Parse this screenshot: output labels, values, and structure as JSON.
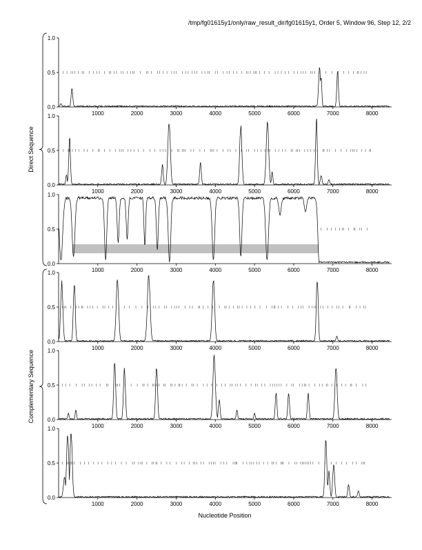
{
  "header": "/tmp/fg01615y1/only/raw_result_dir/fg01615y1, Order 5, Window 96, Step 12, 2/2",
  "xlabel": "Nucleotide Position",
  "group_labels": [
    "Direct Sequence",
    "Complementary Sequence"
  ],
  "colors": {
    "axis": "#000000",
    "trace": "#000000",
    "tick_marks": "#555555",
    "band": "#c0c0c0"
  },
  "chart_data": [
    {
      "type": "line",
      "panel": 1,
      "group": "Direct Sequence",
      "xlim": [
        0,
        8500
      ],
      "ylim": [
        0,
        1
      ],
      "xticks": [
        1000,
        2000,
        3000,
        4000,
        5000,
        6000,
        7000,
        8000
      ],
      "yticks": [
        "0.0",
        "0.5",
        "1.0"
      ],
      "baseline": 0.02,
      "peaks": [
        [
          340,
          0.28,
          30
        ],
        [
          6660,
          0.62,
          35
        ],
        [
          6700,
          0.45,
          25
        ],
        [
          7120,
          0.55,
          30
        ],
        [
          60,
          0.05,
          30
        ]
      ],
      "marker_level": 0.5,
      "marker_range": [
        120,
        7900
      ]
    },
    {
      "type": "line",
      "panel": 2,
      "group": "Direct Sequence",
      "xlim": [
        0,
        8500
      ],
      "ylim": [
        0,
        1
      ],
      "xticks": [
        1000,
        2000,
        3000,
        4000,
        5000,
        6000,
        7000,
        8000
      ],
      "yticks": [
        "0.0",
        "0.5",
        "1.0"
      ],
      "baseline": 0.02,
      "peaks": [
        [
          200,
          0.15,
          25
        ],
        [
          280,
          0.72,
          30
        ],
        [
          2650,
          0.3,
          30
        ],
        [
          2820,
          0.95,
          45
        ],
        [
          3620,
          0.35,
          30
        ],
        [
          4650,
          0.9,
          40
        ],
        [
          5330,
          0.93,
          45
        ],
        [
          5450,
          0.2,
          25
        ],
        [
          6580,
          1.0,
          30
        ],
        [
          6700,
          0.15,
          30
        ],
        [
          6900,
          0.08,
          30
        ]
      ],
      "marker_level": 0.5,
      "marker_range": [
        120,
        8000
      ]
    },
    {
      "type": "line",
      "panel": 3,
      "group": "Direct Sequence",
      "xlim": [
        0,
        8500
      ],
      "ylim": [
        0,
        1
      ],
      "xticks": [
        1000,
        2000,
        3000,
        4000,
        5000,
        6000,
        7000,
        8000
      ],
      "yticks": [
        "0.0",
        "0.5",
        "1.0"
      ],
      "baseline": 0.97,
      "dips": [
        [
          60,
          0.05,
          60
        ],
        [
          380,
          0.1,
          50
        ],
        [
          1200,
          0.05,
          40
        ],
        [
          1520,
          0.3,
          35
        ],
        [
          1750,
          0.35,
          35
        ],
        [
          2200,
          0.25,
          30
        ],
        [
          2520,
          0.2,
          35
        ],
        [
          2830,
          0.02,
          45
        ],
        [
          3950,
          0.05,
          45
        ],
        [
          4650,
          0.1,
          40
        ],
        [
          5320,
          0.05,
          50
        ],
        [
          5650,
          0.7,
          40
        ],
        [
          6300,
          0.75,
          40
        ],
        [
          6650,
          0.0,
          45
        ]
      ],
      "low_after": 6640,
      "band": [
        350,
        6640,
        0.15,
        0.28
      ],
      "marker_level": 0.5,
      "marker_range": [
        6700,
        8000
      ]
    },
    {
      "type": "line",
      "panel": 4,
      "group": "Complementary Sequence",
      "xlim": [
        0,
        8500
      ],
      "ylim": [
        0,
        1
      ],
      "xticks": [
        1000,
        2000,
        3000,
        4000,
        5000,
        6000,
        7000,
        8000
      ],
      "yticks": [
        "0.0",
        "0.5",
        "1.0"
      ],
      "baseline": 0.02,
      "peaks": [
        [
          80,
          0.9,
          40
        ],
        [
          400,
          0.9,
          35
        ],
        [
          1500,
          0.95,
          45
        ],
        [
          2300,
          0.98,
          50
        ],
        [
          3950,
          0.92,
          45
        ],
        [
          6600,
          0.95,
          35
        ],
        [
          7100,
          0.08,
          30
        ]
      ],
      "marker_level": 0.5,
      "marker_range": [
        100,
        7900
      ]
    },
    {
      "type": "line",
      "panel": 5,
      "group": "Complementary Sequence",
      "xlim": [
        0,
        8500
      ],
      "ylim": [
        0,
        1
      ],
      "xticks": [
        1000,
        2000,
        3000,
        4000,
        5000,
        6000,
        7000,
        8000
      ],
      "yticks": [
        "0.0",
        "0.5",
        "1.0"
      ],
      "baseline": 0.02,
      "peaks": [
        [
          250,
          0.1,
          25
        ],
        [
          440,
          0.15,
          25
        ],
        [
          1430,
          0.87,
          35
        ],
        [
          1680,
          0.78,
          35
        ],
        [
          2500,
          0.8,
          35
        ],
        [
          3970,
          0.95,
          45
        ],
        [
          4100,
          0.3,
          30
        ],
        [
          5550,
          0.4,
          30
        ],
        [
          5870,
          0.42,
          30
        ],
        [
          6370,
          0.4,
          30
        ],
        [
          7080,
          0.82,
          40
        ],
        [
          4550,
          0.15,
          25
        ],
        [
          5000,
          0.1,
          25
        ]
      ],
      "marker_level": 0.5,
      "marker_range": [
        100,
        7900
      ]
    },
    {
      "type": "line",
      "panel": 6,
      "group": "Complementary Sequence",
      "xlim": [
        0,
        8500
      ],
      "ylim": [
        0,
        1
      ],
      "xticks": [
        1000,
        2000,
        3000,
        4000,
        5000,
        6000,
        7000,
        8000
      ],
      "yticks": [
        "0.0",
        "0.5",
        "1.0"
      ],
      "baseline": 0.02,
      "peaks": [
        [
          150,
          0.3,
          40
        ],
        [
          230,
          0.95,
          40
        ],
        [
          320,
          0.98,
          40
        ],
        [
          6820,
          0.88,
          35
        ],
        [
          6900,
          0.4,
          30
        ],
        [
          7020,
          0.5,
          35
        ],
        [
          7400,
          0.2,
          30
        ],
        [
          7650,
          0.1,
          30
        ]
      ],
      "marker_level": 0.5,
      "marker_range": [
        100,
        7900
      ]
    }
  ]
}
